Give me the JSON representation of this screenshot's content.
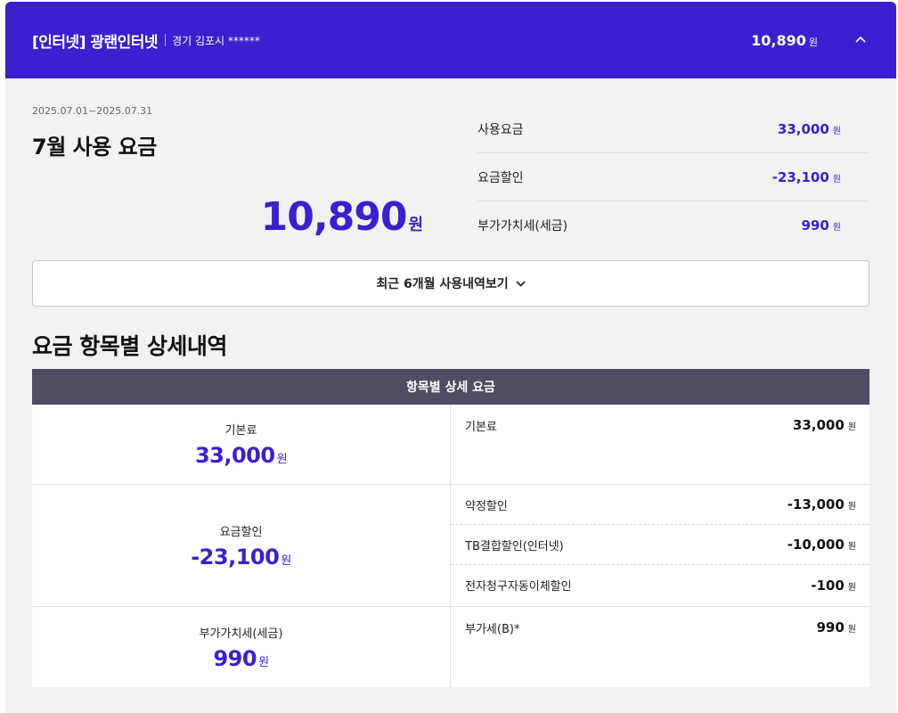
{
  "header": {
    "title": "[인터넷] 광랜인터넷",
    "region": "경기 김포시 ******",
    "amount": "10,890",
    "unit": "원",
    "toggle_icon": "chevron-up-icon"
  },
  "summary": {
    "period": "2025.07.01~2025.07.31",
    "title": "7월 사용 요금",
    "total": "10,890",
    "total_unit": "원",
    "breakdown": [
      {
        "label": "사용요금",
        "value": "33,000",
        "unit": "원"
      },
      {
        "label": "요금할인",
        "value": "-23,100",
        "unit": "원"
      },
      {
        "label": "부가가치세(세금)",
        "value": "990",
        "unit": "원"
      }
    ]
  },
  "history_button": {
    "label": "최근 6개월 사용내역보기",
    "icon": "chevron-down-icon"
  },
  "detail": {
    "section_title": "요금 항목별 상세내역",
    "table_header": "항목별 상세 요금",
    "groups": [
      {
        "label": "기본료",
        "total": "33,000",
        "unit": "원",
        "items": [
          {
            "name": "기본료",
            "value": "33,000",
            "unit": "원"
          }
        ]
      },
      {
        "label": "요금할인",
        "total": "-23,100",
        "unit": "원",
        "items": [
          {
            "name": "약정할인",
            "value": "-13,000",
            "unit": "원"
          },
          {
            "name": "TB결합할인(인터넷)",
            "value": "-10,000",
            "unit": "원"
          },
          {
            "name": "전자청구자동이체할인",
            "value": "-100",
            "unit": "원"
          }
        ]
      },
      {
        "label": "부가가치세(세금)",
        "total": "990",
        "unit": "원",
        "items": [
          {
            "name": "부가세(B)*",
            "value": "990",
            "unit": "원"
          }
        ]
      }
    ]
  },
  "colors": {
    "accent": "#3b1fd1",
    "table_header": "#4f4d64"
  }
}
